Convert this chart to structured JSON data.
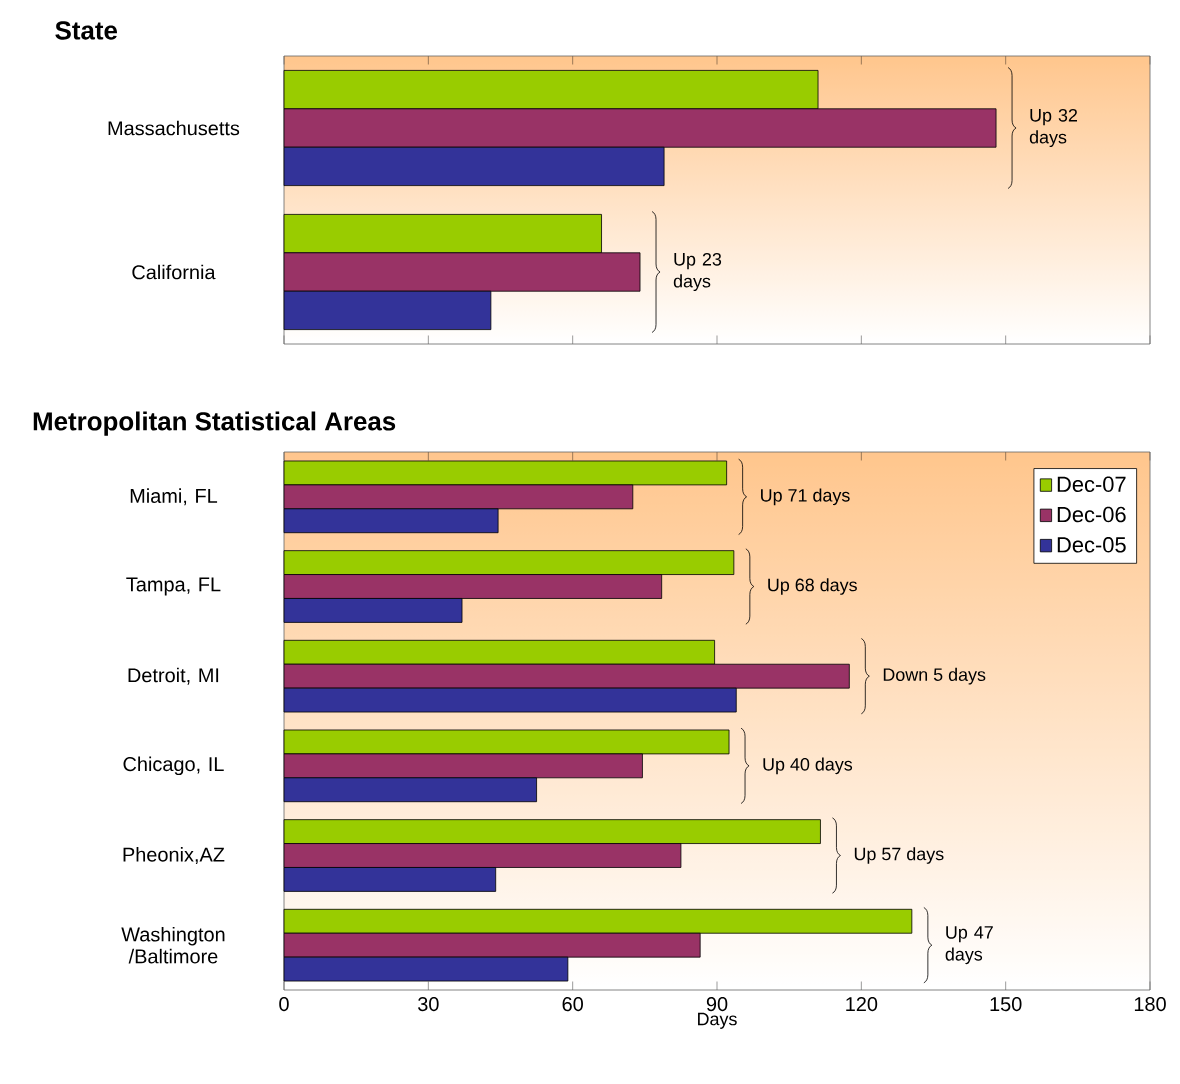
{
  "chart_data": [
    {
      "type": "bar",
      "orientation": "horizontal",
      "title": "State",
      "categories": [
        "Massachusetts",
        "California"
      ],
      "series": [
        {
          "color": "#99cc00",
          "values": [
            111,
            66
          ]
        },
        {
          "color": "#993366",
          "values": [
            148,
            74
          ]
        },
        {
          "color": "#333399",
          "values": [
            79,
            43
          ]
        }
      ],
      "xlim": [
        0,
        180
      ],
      "xticks": [
        0,
        30,
        60,
        90,
        120,
        150,
        180
      ],
      "tick_labels": "y",
      "annotations": [
        "Up 32 days",
        "Up 23 days"
      ]
    },
    {
      "type": "bar",
      "orientation": "horizontal",
      "title": "Metropolitan Statistical Areas",
      "xlabel": "Days",
      "categories": [
        "Miami, FL",
        "Tampa, FL",
        "Detroit, MI",
        "Chicago, IL",
        "Pheonix,AZ",
        "Washington /Baltimore"
      ],
      "series": [
        {
          "name": "Dec-07",
          "color": "#99cc00",
          "values": [
            92,
            93.5,
            89.5,
            92.5,
            111.5,
            130.5
          ]
        },
        {
          "name": "Dec-06",
          "color": "#993366",
          "values": [
            72.5,
            78.5,
            117.5,
            74.5,
            82.5,
            86.5
          ]
        },
        {
          "name": "Dec-05",
          "color": "#333399",
          "values": [
            44.5,
            37,
            94,
            52.5,
            44,
            59
          ]
        }
      ],
      "xlim": [
        0,
        180
      ],
      "xticks": [
        0,
        30,
        60,
        90,
        120,
        150,
        180
      ],
      "legend": "top right",
      "annotations": [
        "Up 71 days",
        "Up 68 days",
        "Down 5 days",
        "Up 40 days",
        "Up 57 days",
        "Up 47 days"
      ]
    }
  ]
}
